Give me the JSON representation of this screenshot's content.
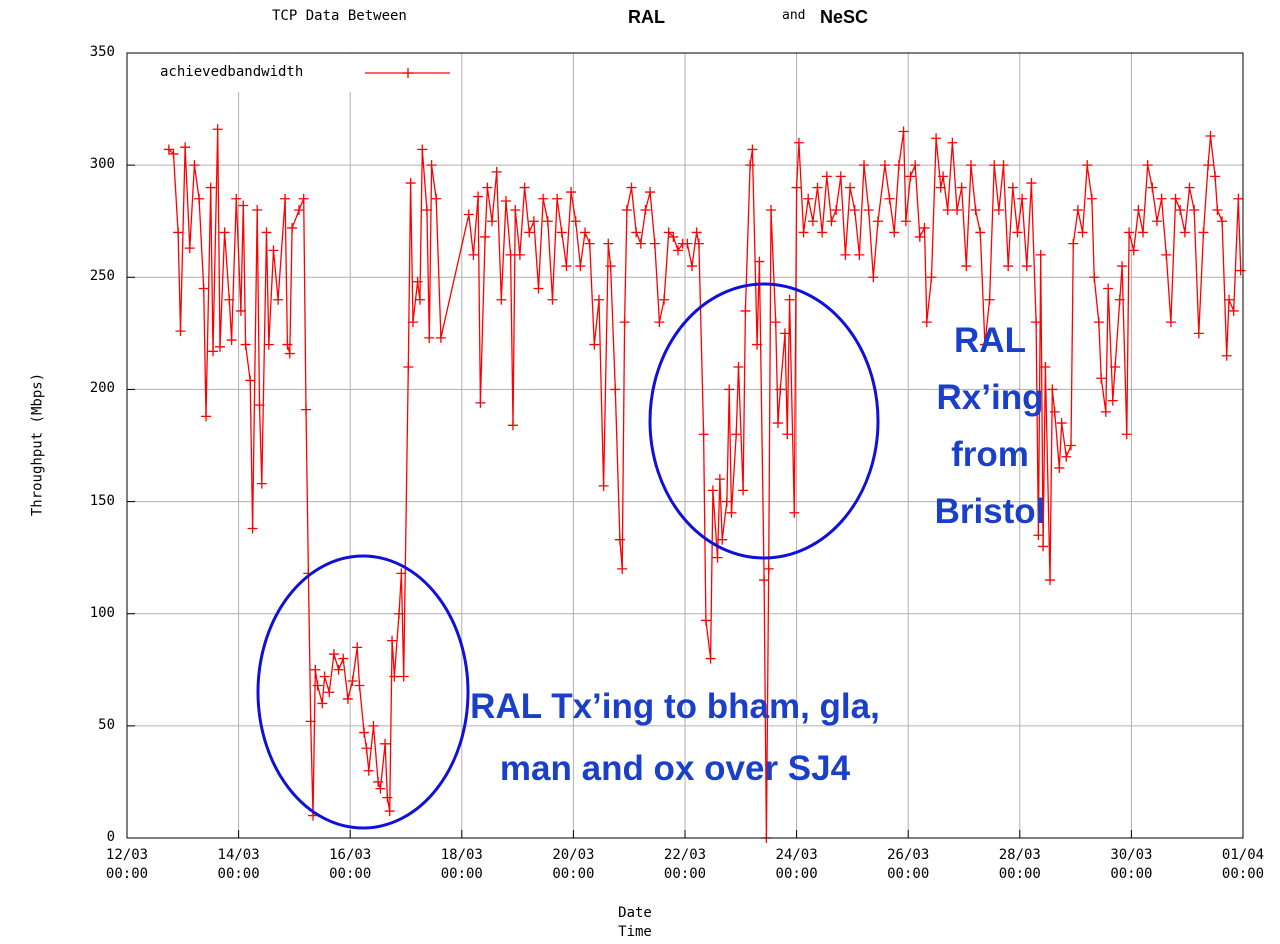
{
  "chart_data": {
    "type": "line",
    "title": [
      "TCP Data Between",
      "RAL",
      "and",
      "NeSC"
    ],
    "xlabel": "Date\nTime",
    "ylabel": "Throughput (Mbps)",
    "annotations": [
      "RAL\nRx’ing\nfrom\nBristol",
      "RAL Tx’ing to bham, gla,\nman and ox over SJ4"
    ],
    "legend": "upper left",
    "grid": true,
    "ylim": [
      0,
      350
    ],
    "yticks": [
      0,
      50,
      100,
      150,
      200,
      250,
      300,
      350
    ],
    "xlim": [
      "12/03 00:00",
      "01/04 00:00"
    ],
    "xticks": [
      {
        "value": "12/03 00:00",
        "label": "12/03\n00:00"
      },
      {
        "value": "14/03 00:00",
        "label": "14/03\n00:00"
      },
      {
        "value": "16/03 00:00",
        "label": "16/03\n00:00"
      },
      {
        "value": "18/03 00:00",
        "label": "18/03\n00:00"
      },
      {
        "value": "20/03 00:00",
        "label": "20/03\n00:00"
      },
      {
        "value": "22/03 00:00",
        "label": "22/03\n00:00"
      },
      {
        "value": "24/03 00:00",
        "label": "24/03\n00:00"
      },
      {
        "value": "26/03 00:00",
        "label": "26/03\n00:00"
      },
      {
        "value": "28/03 00:00",
        "label": "28/03\n00:00"
      },
      {
        "value": "30/03 00:00",
        "label": "30/03\n00:00"
      },
      {
        "value": "01/04 00:00",
        "label": "01/04\n00:00"
      }
    ],
    "x": [
      "12/03 18:00",
      "12/03 20:00",
      "12/03 22:00",
      "12/03 23:00",
      "13/03 01:00",
      "13/03 03:00",
      "13/03 05:00",
      "13/03 07:00",
      "13/03 09:00",
      "13/03 10:00",
      "13/03 12:00",
      "13/03 13:00",
      "13/03 15:00",
      "13/03 16:00",
      "13/03 18:00",
      "13/03 20:00",
      "13/03 21:00",
      "13/03 23:00",
      "14/03 01:00",
      "14/03 02:00",
      "14/03 03:00",
      "14/03 05:00",
      "14/03 06:00",
      "14/03 08:00",
      "14/03 09:00",
      "14/03 10:00",
      "14/03 12:00",
      "14/03 13:00",
      "14/03 15:00",
      "14/03 17:00",
      "14/03 20:00",
      "14/03 21:00",
      "14/03 22:00",
      "14/03 23:00",
      "15/03 02:00",
      "15/03 04:00",
      "15/03 05:00",
      "15/03 06:00",
      "15/03 07:00",
      "15/03 08:00",
      "15/03 09:00",
      "15/03 10:00",
      "15/03 12:00",
      "15/03 13:00",
      "15/03 15:00",
      "15/03 17:00",
      "15/03 19:00",
      "15/03 21:00",
      "15/03 23:00",
      "16/03 01:00",
      "16/03 03:00",
      "16/03 04:00",
      "16/03 06:00",
      "16/03 07:00",
      "16/03 08:00",
      "16/03 10:00",
      "16/03 12:00",
      "16/03 13:00",
      "16/03 15:00",
      "16/03 16:00",
      "16/03 17:00",
      "16/03 18:00",
      "16/03 19:00",
      "16/03 21:00",
      "16/03 22:00",
      "16/03 23:00",
      "17/03 01:00",
      "17/03 02:00",
      "17/03 03:00",
      "17/03 05:00",
      "17/03 06:00",
      "17/03 07:00",
      "17/03 09:00",
      "17/03 10:00",
      "17/03 11:00",
      "17/03 13:00",
      "17/03 15:00",
      "18/03 03:00",
      "18/03 05:00",
      "18/03 07:00",
      "18/03 08:00",
      "18/03 10:00",
      "18/03 11:00",
      "18/03 13:00",
      "18/03 15:00",
      "18/03 17:00",
      "18/03 19:00",
      "18/03 21:00",
      "18/03 22:00",
      "18/03 23:00",
      "19/03 01:00",
      "19/03 03:00",
      "19/03 05:00",
      "19/03 07:00",
      "19/03 09:00",
      "19/03 11:00",
      "19/03 13:00",
      "19/03 15:00",
      "19/03 17:00",
      "19/03 19:00",
      "19/03 21:00",
      "19/03 23:00",
      "20/03 01:00",
      "20/03 03:00",
      "20/03 05:00",
      "20/03 07:00",
      "20/03 09:00",
      "20/03 11:00",
      "20/03 13:00",
      "20/03 15:00",
      "20/03 16:00",
      "20/03 18:00",
      "20/03 20:00",
      "20/03 21:00",
      "20/03 22:00",
      "20/03 23:00",
      "21/03 01:00",
      "21/03 03:00",
      "21/03 05:00",
      "21/03 07:00",
      "21/03 09:00",
      "21/03 11:00",
      "21/03 13:00",
      "21/03 15:00",
      "21/03 17:00",
      "21/03 19:00",
      "21/03 21:00",
      "21/03 23:00",
      "22/03 01:00",
      "22/03 03:00",
      "22/03 05:00",
      "22/03 06:00",
      "22/03 08:00",
      "22/03 09:00",
      "22/03 11:00",
      "22/03 12:00",
      "22/03 14:00",
      "22/03 15:00",
      "22/03 16:00",
      "22/03 18:00",
      "22/03 19:00",
      "22/03 20:00",
      "22/03 22:00",
      "22/03 23:00",
      "23/03 01:00",
      "23/03 02:00",
      "23/03 04:00",
      "23/03 05:00",
      "23/03 07:00",
      "23/03 08:00",
      "23/03 10:00",
      "23/03 11:00",
      "23/03 12:00",
      "23/03 13:00",
      "23/03 15:00",
      "23/03 16:00",
      "23/03 17:00",
      "23/03 19:00",
      "23/03 20:00",
      "23/03 21:00",
      "23/03 23:00",
      "24/03 00:00",
      "24/03 01:00",
      "24/03 03:00",
      "24/03 05:00",
      "24/03 07:00",
      "24/03 09:00",
      "24/03 11:00",
      "24/03 13:00",
      "24/03 15:00",
      "24/03 17:00",
      "24/03 19:00",
      "24/03 21:00",
      "24/03 23:00",
      "25/03 01:00",
      "25/03 03:00",
      "25/03 05:00",
      "25/03 07:00",
      "25/03 09:00",
      "25/03 11:00",
      "25/03 14:00",
      "25/03 16:00",
      "25/03 18:00",
      "25/03 20:00",
      "25/03 22:00",
      "25/03 23:00",
      "26/03 01:00",
      "26/03 03:00",
      "26/03 05:00",
      "26/03 07:00",
      "26/03 08:00",
      "26/03 10:00",
      "26/03 12:00",
      "26/03 14:00",
      "26/03 15:00",
      "26/03 17:00",
      "26/03 19:00",
      "26/03 21:00",
      "26/03 23:00",
      "27/03 01:00",
      "27/03 03:00",
      "27/03 05:00",
      "27/03 07:00",
      "27/03 09:00",
      "27/03 11:00",
      "27/03 13:00",
      "27/03 15:00",
      "27/03 17:00",
      "27/03 19:00",
      "27/03 21:00",
      "27/03 23:00",
      "28/03 01:00",
      "28/03 03:00",
      "28/03 05:00",
      "28/03 07:00",
      "28/03 08:00",
      "28/03 09:00",
      "28/03 10:00",
      "28/03 11:00",
      "28/03 13:00",
      "28/03 14:00",
      "28/03 15:00",
      "28/03 17:00",
      "28/03 18:00",
      "28/03 20:00",
      "28/03 22:00",
      "28/03 23:00",
      "29/03 01:00",
      "29/03 03:00",
      "29/03 05:00",
      "29/03 07:00",
      "29/03 08:00",
      "29/03 10:00",
      "29/03 11:00",
      "29/03 13:00",
      "29/03 14:00",
      "29/03 16:00",
      "29/03 17:00",
      "29/03 19:00",
      "29/03 20:00",
      "29/03 22:00",
      "29/03 23:00",
      "30/03 01:00",
      "30/03 03:00",
      "30/03 05:00",
      "30/03 07:00",
      "30/03 09:00",
      "30/03 11:00",
      "30/03 13:00",
      "30/03 15:00",
      "30/03 17:00",
      "30/03 19:00",
      "30/03 21:00",
      "30/03 23:00",
      "31/03 01:00",
      "31/03 03:00",
      "31/03 05:00",
      "31/03 07:00",
      "31/03 09:00",
      "31/03 10:00",
      "31/03 12:00",
      "31/03 13:00",
      "31/03 15:00",
      "31/03 17:00",
      "31/03 18:00",
      "31/03 20:00",
      "31/03 22:00",
      "31/03 23:00"
    ],
    "series": [
      {
        "name": "achievedbandwidth",
        "color": "#ff0000",
        "values": [
          307,
          305,
          270,
          226,
          308,
          263,
          300,
          285,
          245,
          188,
          290,
          217,
          316,
          219,
          270,
          240,
          222,
          285,
          235,
          282,
          220,
          204,
          138,
          280,
          193,
          158,
          270,
          220,
          262,
          240,
          285,
          220,
          216,
          272,
          280,
          285,
          191,
          118,
          52,
          10,
          75,
          68,
          60,
          72,
          65,
          82,
          75,
          80,
          62,
          70,
          85,
          68,
          47,
          40,
          30,
          50,
          25,
          22,
          42,
          18,
          12,
          88,
          72,
          100,
          118,
          72,
          210,
          292,
          230,
          248,
          240,
          307,
          280,
          223,
          300,
          285,
          223,
          278,
          260,
          286,
          194,
          268,
          290,
          275,
          297,
          240,
          284,
          260,
          184,
          280,
          260,
          290,
          270,
          275,
          245,
          285,
          275,
          240,
          285,
          270,
          255,
          288,
          275,
          255,
          270,
          265,
          220,
          240,
          157,
          265,
          255,
          200,
          133,
          120,
          230,
          280,
          290,
          270,
          265,
          280,
          288,
          265,
          230,
          240,
          270,
          268,
          262,
          265,
          265,
          255,
          270,
          265,
          180,
          97,
          80,
          155,
          125,
          160,
          133,
          150,
          200,
          145,
          180,
          210,
          155,
          235,
          300,
          307,
          220,
          257,
          115,
          0,
          120,
          280,
          230,
          185,
          200,
          225,
          180,
          240,
          145,
          290,
          310,
          270,
          285,
          275,
          290,
          270,
          295,
          275,
          280,
          295,
          260,
          290,
          280,
          260,
          300,
          280,
          250,
          275,
          300,
          285,
          270,
          300,
          315,
          275,
          295,
          300,
          268,
          272,
          230,
          250,
          312,
          290,
          295,
          280,
          310,
          280,
          290,
          255,
          300,
          280,
          270,
          220,
          240,
          300,
          280,
          300,
          255,
          290,
          270,
          285,
          255,
          292,
          230,
          135,
          260,
          130,
          210,
          115,
          200,
          190,
          165,
          185,
          170,
          175,
          265,
          280,
          270,
          300,
          285,
          250,
          230,
          205,
          190,
          245,
          195,
          210,
          240,
          255,
          180,
          270,
          262,
          280,
          270,
          300,
          290,
          275,
          285,
          260,
          230,
          285,
          280,
          270,
          290,
          280,
          225,
          270,
          300,
          313,
          295,
          280,
          275,
          215,
          240,
          235,
          285,
          253
        ]
      }
    ]
  }
}
